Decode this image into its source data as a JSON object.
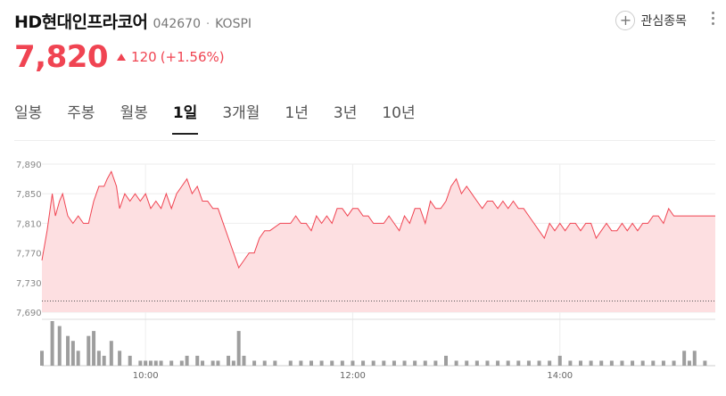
{
  "stock": {
    "name": "HD현대인프라코어",
    "code": "042670",
    "separator": "·",
    "market": "KOSPI"
  },
  "watch_label": "관심종목",
  "quote": {
    "price": "7,820",
    "change": "120",
    "change_pct": "(+1.56%)",
    "color": "#f04452"
  },
  "tabs": [
    {
      "label": "일봉",
      "active": false
    },
    {
      "label": "주봉",
      "active": false
    },
    {
      "label": "월봉",
      "active": false
    },
    {
      "label": "1일",
      "active": true
    },
    {
      "label": "3개월",
      "active": false
    },
    {
      "label": "1년",
      "active": false
    },
    {
      "label": "3년",
      "active": false
    },
    {
      "label": "10년",
      "active": false
    }
  ],
  "chart_data": {
    "type": "area",
    "y_ticks": [
      "7,890",
      "7,850",
      "7,810",
      "7,770",
      "7,730",
      "7,690"
    ],
    "ylim": [
      7690,
      7890
    ],
    "x_ticks": [
      "10:00",
      "12:00",
      "14:00"
    ],
    "x_tick_times": [
      10,
      12,
      14
    ],
    "xlim": [
      9.0,
      15.5
    ],
    "prev_close": 7700,
    "grid": true,
    "line_color": "#f04452",
    "fill_color": "#fddfe1",
    "series": [
      {
        "values": [
          [
            9.0,
            7760
          ],
          [
            9.05,
            7800
          ],
          [
            9.08,
            7830
          ],
          [
            9.1,
            7850
          ],
          [
            9.13,
            7820
          ],
          [
            9.17,
            7840
          ],
          [
            9.2,
            7850
          ],
          [
            9.25,
            7820
          ],
          [
            9.3,
            7810
          ],
          [
            9.35,
            7820
          ],
          [
            9.4,
            7810
          ],
          [
            9.45,
            7810
          ],
          [
            9.5,
            7840
          ],
          [
            9.55,
            7860
          ],
          [
            9.6,
            7860
          ],
          [
            9.63,
            7870
          ],
          [
            9.67,
            7880
          ],
          [
            9.72,
            7860
          ],
          [
            9.75,
            7830
          ],
          [
            9.8,
            7850
          ],
          [
            9.85,
            7840
          ],
          [
            9.9,
            7850
          ],
          [
            9.95,
            7840
          ],
          [
            10.0,
            7850
          ],
          [
            10.05,
            7830
          ],
          [
            10.1,
            7840
          ],
          [
            10.15,
            7830
          ],
          [
            10.2,
            7850
          ],
          [
            10.25,
            7830
          ],
          [
            10.3,
            7850
          ],
          [
            10.35,
            7860
          ],
          [
            10.4,
            7870
          ],
          [
            10.45,
            7850
          ],
          [
            10.5,
            7860
          ],
          [
            10.55,
            7840
          ],
          [
            10.6,
            7840
          ],
          [
            10.65,
            7830
          ],
          [
            10.7,
            7830
          ],
          [
            10.75,
            7810
          ],
          [
            10.8,
            7790
          ],
          [
            10.85,
            7770
          ],
          [
            10.9,
            7750
          ],
          [
            10.95,
            7760
          ],
          [
            11.0,
            7770
          ],
          [
            11.05,
            7770
          ],
          [
            11.1,
            7790
          ],
          [
            11.15,
            7800
          ],
          [
            11.2,
            7800
          ],
          [
            11.3,
            7810
          ],
          [
            11.4,
            7810
          ],
          [
            11.45,
            7820
          ],
          [
            11.5,
            7810
          ],
          [
            11.55,
            7810
          ],
          [
            11.6,
            7800
          ],
          [
            11.65,
            7820
          ],
          [
            11.7,
            7810
          ],
          [
            11.75,
            7820
          ],
          [
            11.8,
            7810
          ],
          [
            11.85,
            7830
          ],
          [
            11.9,
            7830
          ],
          [
            11.95,
            7820
          ],
          [
            12.0,
            7830
          ],
          [
            12.05,
            7830
          ],
          [
            12.1,
            7820
          ],
          [
            12.15,
            7820
          ],
          [
            12.2,
            7810
          ],
          [
            12.3,
            7810
          ],
          [
            12.35,
            7820
          ],
          [
            12.4,
            7810
          ],
          [
            12.45,
            7800
          ],
          [
            12.5,
            7820
          ],
          [
            12.55,
            7810
          ],
          [
            12.6,
            7830
          ],
          [
            12.65,
            7830
          ],
          [
            12.7,
            7810
          ],
          [
            12.75,
            7840
          ],
          [
            12.8,
            7830
          ],
          [
            12.85,
            7830
          ],
          [
            12.9,
            7840
          ],
          [
            12.95,
            7860
          ],
          [
            13.0,
            7870
          ],
          [
            13.05,
            7850
          ],
          [
            13.1,
            7860
          ],
          [
            13.15,
            7850
          ],
          [
            13.2,
            7840
          ],
          [
            13.25,
            7830
          ],
          [
            13.3,
            7840
          ],
          [
            13.35,
            7840
          ],
          [
            13.4,
            7830
          ],
          [
            13.45,
            7840
          ],
          [
            13.5,
            7830
          ],
          [
            13.55,
            7840
          ],
          [
            13.6,
            7830
          ],
          [
            13.65,
            7830
          ],
          [
            13.7,
            7820
          ],
          [
            13.75,
            7810
          ],
          [
            13.8,
            7800
          ],
          [
            13.85,
            7790
          ],
          [
            13.9,
            7810
          ],
          [
            13.95,
            7800
          ],
          [
            14.0,
            7810
          ],
          [
            14.05,
            7800
          ],
          [
            14.1,
            7810
          ],
          [
            14.15,
            7810
          ],
          [
            14.2,
            7800
          ],
          [
            14.25,
            7810
          ],
          [
            14.3,
            7810
          ],
          [
            14.35,
            7790
          ],
          [
            14.4,
            7800
          ],
          [
            14.45,
            7810
          ],
          [
            14.5,
            7800
          ],
          [
            14.55,
            7800
          ],
          [
            14.6,
            7810
          ],
          [
            14.65,
            7800
          ],
          [
            14.7,
            7810
          ],
          [
            14.75,
            7800
          ],
          [
            14.8,
            7810
          ],
          [
            14.85,
            7810
          ],
          [
            14.9,
            7820
          ],
          [
            14.95,
            7820
          ],
          [
            15.0,
            7810
          ],
          [
            15.05,
            7830
          ],
          [
            15.1,
            7820
          ],
          [
            15.15,
            7820
          ],
          [
            15.2,
            7820
          ],
          [
            15.5,
            7820
          ]
        ]
      }
    ],
    "volume": [
      [
        9.0,
        3
      ],
      [
        9.1,
        9
      ],
      [
        9.17,
        8
      ],
      [
        9.25,
        6
      ],
      [
        9.3,
        5
      ],
      [
        9.35,
        3
      ],
      [
        9.45,
        6
      ],
      [
        9.5,
        7
      ],
      [
        9.55,
        3
      ],
      [
        9.6,
        2
      ],
      [
        9.67,
        5
      ],
      [
        9.75,
        3
      ],
      [
        9.85,
        2
      ],
      [
        9.95,
        1
      ],
      [
        10.0,
        1
      ],
      [
        10.05,
        1
      ],
      [
        10.1,
        1
      ],
      [
        10.15,
        1
      ],
      [
        10.25,
        1
      ],
      [
        10.35,
        1
      ],
      [
        10.4,
        2
      ],
      [
        10.5,
        2
      ],
      [
        10.55,
        1
      ],
      [
        10.65,
        1
      ],
      [
        10.7,
        1
      ],
      [
        10.8,
        2
      ],
      [
        10.85,
        1
      ],
      [
        10.9,
        7
      ],
      [
        10.95,
        2
      ],
      [
        11.05,
        1
      ],
      [
        11.15,
        1
      ],
      [
        11.25,
        1
      ],
      [
        11.4,
        1
      ],
      [
        11.5,
        1
      ],
      [
        11.6,
        1
      ],
      [
        11.7,
        1
      ],
      [
        11.8,
        1
      ],
      [
        11.9,
        1
      ],
      [
        12.0,
        1
      ],
      [
        12.1,
        1
      ],
      [
        12.2,
        1
      ],
      [
        12.3,
        1
      ],
      [
        12.4,
        1
      ],
      [
        12.5,
        1
      ],
      [
        12.6,
        1
      ],
      [
        12.7,
        1
      ],
      [
        12.8,
        1
      ],
      [
        12.9,
        2
      ],
      [
        13.0,
        1
      ],
      [
        13.1,
        1
      ],
      [
        13.2,
        1
      ],
      [
        13.3,
        1
      ],
      [
        13.4,
        1
      ],
      [
        13.5,
        1
      ],
      [
        13.6,
        1
      ],
      [
        13.7,
        1
      ],
      [
        13.8,
        1
      ],
      [
        13.9,
        1
      ],
      [
        14.0,
        2
      ],
      [
        14.1,
        1
      ],
      [
        14.2,
        1
      ],
      [
        14.3,
        1
      ],
      [
        14.4,
        1
      ],
      [
        14.5,
        1
      ],
      [
        14.6,
        1
      ],
      [
        14.7,
        1
      ],
      [
        14.8,
        1
      ],
      [
        14.9,
        1
      ],
      [
        15.0,
        1
      ],
      [
        15.1,
        1
      ],
      [
        15.2,
        3
      ],
      [
        15.25,
        1
      ],
      [
        15.3,
        3
      ],
      [
        15.4,
        1
      ]
    ]
  }
}
